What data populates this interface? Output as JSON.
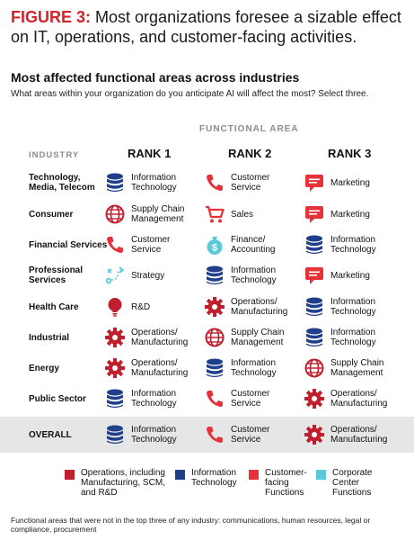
{
  "figure": {
    "number": "FIGURE 3:",
    "title": "Most organizations foresee a sizable effect on IT, operations, and customer-facing activities."
  },
  "section_title": "Most affected functional areas across industries",
  "question": "What areas within your organization do you anticipate AI will affect the most? Select three.",
  "functional_area_label": "FUNCTIONAL AREA",
  "industry_label": "INDUSTRY",
  "rank_labels": [
    "RANK 1",
    "RANK 2",
    "RANK 3"
  ],
  "colors": {
    "operations": "#c0202e",
    "it": "#1f3f8a",
    "customer": "#e8323a",
    "corporate": "#5fc8d8"
  },
  "rows": [
    {
      "industry": "Technology,\nMedia, Telecom",
      "ranks": [
        {
          "label": "Information\nTechnology",
          "icon": "database-icon",
          "cat": "it"
        },
        {
          "label": "Customer\nService",
          "icon": "phone-icon",
          "cat": "customer"
        },
        {
          "label": "Marketing",
          "icon": "chat-bubble-icon",
          "cat": "customer"
        }
      ]
    },
    {
      "industry": "Consumer",
      "ranks": [
        {
          "label": "Supply Chain\nManagement",
          "icon": "globe-icon",
          "cat": "operations"
        },
        {
          "label": "Sales",
          "icon": "cart-icon",
          "cat": "customer"
        },
        {
          "label": "Marketing",
          "icon": "chat-bubble-icon",
          "cat": "customer"
        }
      ]
    },
    {
      "industry": "Financial Services",
      "ranks": [
        {
          "label": "Customer\nService",
          "icon": "phone-icon",
          "cat": "customer"
        },
        {
          "label": "Finance/\nAccounting",
          "icon": "money-bag-icon",
          "cat": "corporate"
        },
        {
          "label": "Information\nTechnology",
          "icon": "database-icon",
          "cat": "it"
        }
      ]
    },
    {
      "industry": "Professional\nServices",
      "ranks": [
        {
          "label": "Strategy",
          "icon": "strategy-icon",
          "cat": "corporate"
        },
        {
          "label": "Information\nTechnology",
          "icon": "database-icon",
          "cat": "it"
        },
        {
          "label": "Marketing",
          "icon": "chat-bubble-icon",
          "cat": "customer"
        }
      ]
    },
    {
      "industry": "Health Care",
      "ranks": [
        {
          "label": "R&D",
          "icon": "lightbulb-icon",
          "cat": "operations"
        },
        {
          "label": "Operations/\nManufacturing",
          "icon": "gear-icon",
          "cat": "operations"
        },
        {
          "label": "Information\nTechnology",
          "icon": "database-icon",
          "cat": "it"
        }
      ]
    },
    {
      "industry": "Industrial",
      "ranks": [
        {
          "label": "Operations/\nManufacturing",
          "icon": "gear-icon",
          "cat": "operations"
        },
        {
          "label": "Supply Chain\nManagement",
          "icon": "globe-icon",
          "cat": "operations"
        },
        {
          "label": "Information\nTechnology",
          "icon": "database-icon",
          "cat": "it"
        }
      ]
    },
    {
      "industry": "Energy",
      "ranks": [
        {
          "label": "Operations/\nManufacturing",
          "icon": "gear-icon",
          "cat": "operations"
        },
        {
          "label": "Information\nTechnology",
          "icon": "database-icon",
          "cat": "it"
        },
        {
          "label": "Supply Chain\nManagement",
          "icon": "globe-icon",
          "cat": "operations"
        }
      ]
    },
    {
      "industry": "Public Sector",
      "ranks": [
        {
          "label": "Information\nTechnology",
          "icon": "database-icon",
          "cat": "it"
        },
        {
          "label": "Customer\nService",
          "icon": "phone-icon",
          "cat": "customer"
        },
        {
          "label": "Operations/\nManufacturing",
          "icon": "gear-icon",
          "cat": "operations"
        }
      ]
    },
    {
      "industry": "OVERALL",
      "overall": true,
      "ranks": [
        {
          "label": "Information\nTechnology",
          "icon": "database-icon",
          "cat": "it"
        },
        {
          "label": "Customer\nService",
          "icon": "phone-icon",
          "cat": "customer"
        },
        {
          "label": "Operations/\nManufacturing",
          "icon": "gear-icon",
          "cat": "operations"
        }
      ]
    }
  ],
  "legend": [
    {
      "label": "Operations, including\nManufacturing, SCM,\nand R&D",
      "cat": "operations"
    },
    {
      "label": "Information\nTechnology",
      "cat": "it"
    },
    {
      "label": "Customer-\nfacing\nFunctions",
      "cat": "customer"
    },
    {
      "label": "Corporate\nCenter\nFunctions",
      "cat": "corporate"
    }
  ],
  "footnote": "Functional areas that were not in the top three of any industry: communications, human resources, legal or compliance, procurement"
}
